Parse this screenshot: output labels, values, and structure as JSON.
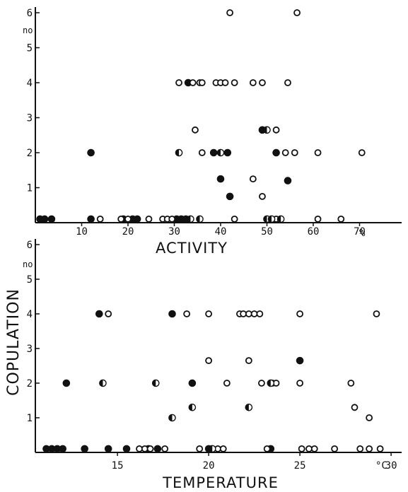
{
  "shared_ylabel": "COPULATION",
  "chart_data": [
    {
      "type": "scatter",
      "xlabel": "ACTIVITY",
      "x_unit": "%",
      "y_unit": "no",
      "xlim": [
        0,
        73
      ],
      "ylim": [
        0,
        6
      ],
      "xticks": [
        "10",
        "20",
        "30",
        "40",
        "50",
        "60",
        "70"
      ],
      "yticks": [
        "1",
        "2",
        "3",
        "4",
        "5",
        "6"
      ],
      "series": [
        {
          "marker": "filled",
          "points": [
            [
              1,
              0
            ],
            [
              2,
              0
            ],
            [
              3.5,
              0
            ],
            [
              12,
              0
            ],
            [
              12,
              2
            ],
            [
              19,
              0
            ],
            [
              21,
              0
            ],
            [
              22,
              0
            ],
            [
              30.5,
              0
            ],
            [
              31.5,
              0
            ],
            [
              32.5,
              0
            ],
            [
              33,
              4
            ],
            [
              38.5,
              2
            ],
            [
              40,
              1.25
            ],
            [
              41.5,
              2
            ],
            [
              42,
              0.75
            ],
            [
              49,
              2.65
            ],
            [
              52,
              2
            ],
            [
              54.5,
              1.2
            ]
          ]
        },
        {
          "marker": "open",
          "points": [
            [
              14,
              0
            ],
            [
              18.5,
              0
            ],
            [
              20,
              0
            ],
            [
              24.5,
              0
            ],
            [
              27.5,
              0
            ],
            [
              28.5,
              0
            ],
            [
              29.5,
              0
            ],
            [
              31,
              4
            ],
            [
              34,
              4
            ],
            [
              34.5,
              2.65
            ],
            [
              35.5,
              4
            ],
            [
              36,
              4
            ],
            [
              36,
              2
            ],
            [
              39,
              4
            ],
            [
              40,
              4
            ],
            [
              41,
              4
            ],
            [
              42,
              6
            ],
            [
              43,
              0
            ],
            [
              43,
              4
            ],
            [
              47,
              4
            ],
            [
              47,
              1.25
            ],
            [
              49,
              4
            ],
            [
              49,
              0.75
            ],
            [
              50,
              0
            ],
            [
              52,
              0
            ],
            [
              52,
              2.65
            ],
            [
              53,
              0
            ],
            [
              54,
              2
            ],
            [
              54.5,
              4
            ],
            [
              56,
              2
            ],
            [
              56.5,
              6
            ],
            [
              61,
              0
            ],
            [
              61,
              2
            ],
            [
              66,
              0
            ],
            [
              70.5,
              2
            ]
          ]
        },
        {
          "marker": "half",
          "points": [
            [
              31,
              2
            ],
            [
              33.5,
              0
            ],
            [
              35.5,
              0
            ],
            [
              40,
              2
            ],
            [
              50,
              2.65
            ],
            [
              50,
              0
            ],
            [
              51,
              0
            ],
            [
              53,
              0
            ]
          ]
        }
      ]
    },
    {
      "type": "scatter",
      "xlabel": "TEMPERATURE",
      "x_unit": "°C",
      "y_unit": "no",
      "xlim": [
        10.5,
        30
      ],
      "ylim": [
        0,
        6
      ],
      "xticks": [
        "15",
        "20",
        "25",
        "30"
      ],
      "yticks": [
        "1",
        "2",
        "3",
        "4",
        "5",
        "6"
      ],
      "series": [
        {
          "marker": "filled",
          "points": [
            [
              11.1,
              0
            ],
            [
              11.4,
              0
            ],
            [
              11.7,
              0
            ],
            [
              12,
              0
            ],
            [
              12.2,
              2
            ],
            [
              13.2,
              0
            ],
            [
              14,
              4
            ],
            [
              14.5,
              0
            ],
            [
              15.5,
              0
            ],
            [
              16.7,
              0
            ],
            [
              17.2,
              0
            ],
            [
              18,
              4
            ],
            [
              19.1,
              2
            ],
            [
              20,
              0
            ],
            [
              23.4,
              0
            ],
            [
              25,
              2.65
            ]
          ]
        },
        {
          "marker": "open",
          "points": [
            [
              14.5,
              4
            ],
            [
              16.2,
              0
            ],
            [
              16.5,
              0
            ],
            [
              16.8,
              0
            ],
            [
              17.6,
              0
            ],
            [
              18.8,
              4
            ],
            [
              19.5,
              0
            ],
            [
              20,
              4
            ],
            [
              20,
              2.65
            ],
            [
              20.5,
              0
            ],
            [
              20.8,
              0
            ],
            [
              21,
              2
            ],
            [
              21.7,
              4
            ],
            [
              21.9,
              4
            ],
            [
              22.2,
              4
            ],
            [
              22.2,
              2.65
            ],
            [
              22.5,
              4
            ],
            [
              22.8,
              4
            ],
            [
              22.9,
              2
            ],
            [
              23.2,
              0
            ],
            [
              23.5,
              2
            ],
            [
              23.7,
              2
            ],
            [
              25,
              4
            ],
            [
              25,
              2
            ],
            [
              25.1,
              0
            ],
            [
              25.5,
              0
            ],
            [
              25.8,
              0
            ],
            [
              26.9,
              0
            ],
            [
              27.8,
              2
            ],
            [
              28,
              1.3
            ],
            [
              28.3,
              0
            ],
            [
              28.8,
              0
            ],
            [
              28.8,
              1
            ],
            [
              29.2,
              4
            ],
            [
              29.4,
              0
            ]
          ]
        },
        {
          "marker": "half",
          "points": [
            [
              14.2,
              2
            ],
            [
              17.1,
              2
            ],
            [
              18,
              1
            ],
            [
              19.1,
              1.3
            ],
            [
              20.2,
              0
            ],
            [
              22.2,
              1.3
            ],
            [
              23.4,
              2
            ]
          ]
        }
      ]
    }
  ]
}
